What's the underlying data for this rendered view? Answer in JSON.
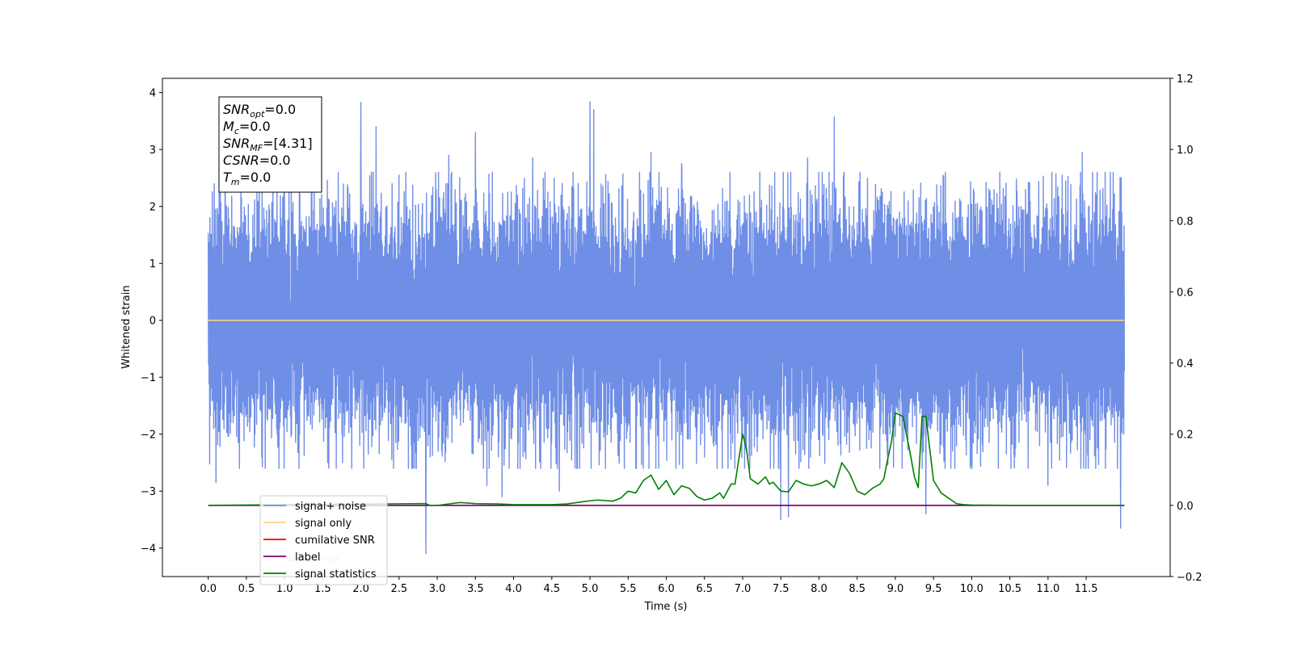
{
  "chart_data": {
    "type": "line",
    "xlabel": "Time (s)",
    "ylabel": "Whitened strain",
    "xlim": [
      -0.6,
      12.6
    ],
    "ylim": [
      -4.5,
      4.25
    ],
    "y2lim": [
      -0.2,
      1.2
    ],
    "x_ticks": [
      "0.0",
      "0.5",
      "1.0",
      "1.5",
      "2.0",
      "2.5",
      "3.0",
      "3.5",
      "4.0",
      "4.5",
      "5.0",
      "5.5",
      "6.0",
      "6.5",
      "7.0",
      "7.5",
      "8.0",
      "8.5",
      "9.0",
      "9.5",
      "10.0",
      "10.5",
      "11.0",
      "11.5"
    ],
    "y_ticks": [
      "4",
      "3",
      "2",
      "1",
      "0",
      "−1",
      "−2",
      "−3",
      "−4"
    ],
    "y2_ticks": [
      "1.2",
      "1.0",
      "0.8",
      "0.6",
      "0.4",
      "0.2",
      "0.0",
      "−0.2"
    ],
    "legend_position": "lower-left",
    "legend": [
      {
        "label": "signal+ noise",
        "color": "#6f8ee6"
      },
      {
        "label": "signal only",
        "color": "#ffd280"
      },
      {
        "label": "cumilative SNR",
        "color": "#ff0000"
      },
      {
        "label": "label",
        "color": "#800080"
      },
      {
        "label": "signal statistics",
        "color": "#008000"
      }
    ],
    "legend_hidden_text": "label only",
    "annotation": {
      "lines": [
        {
          "base": "SNR",
          "sub": "opt",
          "value": "=0.0"
        },
        {
          "base": "M",
          "sub": "c",
          "value": "=0.0"
        },
        {
          "base": "SNR",
          "sub": "MF",
          "value": "=[4.31]"
        },
        {
          "base": "CSNR",
          "sub": "",
          "value": "=0.0"
        },
        {
          "base": "T",
          "sub": "m",
          "value": "=0.0"
        }
      ]
    },
    "series": [
      {
        "name": "signal+ noise",
        "color": "#6f8ee6",
        "axis": "left",
        "description": "whitened noise, roughly ±2.5 with spikes up to ~3.85 and down to ~-4.1",
        "x_range": [
          0.0,
          12.0
        ],
        "envelope": [
          -2.6,
          2.6
        ],
        "spikes": [
          {
            "x": 0.08,
            "y": 2.4
          },
          {
            "x": 0.1,
            "y": -2.85
          },
          {
            "x": 0.22,
            "y": 2.8
          },
          {
            "x": 1.75,
            "y": -2.0
          },
          {
            "x": 2.0,
            "y": 3.83
          },
          {
            "x": 2.2,
            "y": 3.4
          },
          {
            "x": 2.5,
            "y": 2.55
          },
          {
            "x": 2.85,
            "y": 3.17
          },
          {
            "x": 2.85,
            "y": -4.1
          },
          {
            "x": 3.15,
            "y": 2.9
          },
          {
            "x": 3.5,
            "y": 3.3
          },
          {
            "x": 3.65,
            "y": -2.9
          },
          {
            "x": 3.85,
            "y": -3.1
          },
          {
            "x": 4.25,
            "y": 2.85
          },
          {
            "x": 4.6,
            "y": 3.85
          },
          {
            "x": 4.6,
            "y": -3.0
          },
          {
            "x": 5.0,
            "y": 3.84
          },
          {
            "x": 5.05,
            "y": 3.7
          },
          {
            "x": 5.8,
            "y": 2.95
          },
          {
            "x": 6.2,
            "y": 2.75
          },
          {
            "x": 7.5,
            "y": -3.5
          },
          {
            "x": 7.6,
            "y": -3.45
          },
          {
            "x": 7.85,
            "y": 2.85
          },
          {
            "x": 8.2,
            "y": 3.57
          },
          {
            "x": 9.4,
            "y": -3.4
          },
          {
            "x": 11.0,
            "y": -2.9
          },
          {
            "x": 11.45,
            "y": 2.95
          },
          {
            "x": 11.95,
            "y": -3.65
          }
        ]
      },
      {
        "name": "signal only",
        "color": "#ffd280",
        "axis": "left",
        "x": [
          0.0,
          12.0
        ],
        "y": [
          0.0,
          0.0
        ]
      },
      {
        "name": "cumilative SNR",
        "color": "#ff0000",
        "axis": "right",
        "x": [
          0.0,
          12.0
        ],
        "y": [
          0.0,
          0.0
        ]
      },
      {
        "name": "label",
        "color": "#800080",
        "axis": "right",
        "x": [
          0.0,
          12.0
        ],
        "y": [
          0.0,
          0.0
        ]
      },
      {
        "name": "signal statistics",
        "color": "#008000",
        "axis": "right",
        "x": [
          0.0,
          2.8,
          2.85,
          2.9,
          3.0,
          3.3,
          3.5,
          3.8,
          4.0,
          4.5,
          4.7,
          4.9,
          5.0,
          5.1,
          5.3,
          5.4,
          5.5,
          5.6,
          5.7,
          5.8,
          5.9,
          6.0,
          6.1,
          6.2,
          6.3,
          6.4,
          6.5,
          6.6,
          6.7,
          6.75,
          6.85,
          6.9,
          7.0,
          7.05,
          7.1,
          7.2,
          7.3,
          7.35,
          7.4,
          7.5,
          7.6,
          7.7,
          7.8,
          7.9,
          8.0,
          8.1,
          8.2,
          8.3,
          8.4,
          8.5,
          8.6,
          8.7,
          8.8,
          8.85,
          8.9,
          8.95,
          9.0,
          9.1,
          9.2,
          9.25,
          9.3,
          9.35,
          9.4,
          9.5,
          9.6,
          9.7,
          9.8,
          9.9,
          10.0,
          10.5,
          12.0
        ],
        "y": [
          0.0,
          0.005,
          0.005,
          0.0,
          0.0,
          0.008,
          0.005,
          0.004,
          0.002,
          0.002,
          0.004,
          0.01,
          0.013,
          0.015,
          0.012,
          0.02,
          0.04,
          0.035,
          0.07,
          0.085,
          0.045,
          0.07,
          0.03,
          0.055,
          0.048,
          0.025,
          0.015,
          0.02,
          0.035,
          0.02,
          0.06,
          0.06,
          0.2,
          0.16,
          0.075,
          0.06,
          0.08,
          0.06,
          0.065,
          0.04,
          0.038,
          0.07,
          0.06,
          0.055,
          0.06,
          0.07,
          0.05,
          0.12,
          0.09,
          0.04,
          0.03,
          0.048,
          0.06,
          0.075,
          0.13,
          0.18,
          0.26,
          0.25,
          0.14,
          0.08,
          0.05,
          0.25,
          0.25,
          0.07,
          0.035,
          0.02,
          0.005,
          0.002,
          0.001,
          0.0,
          0.0
        ]
      }
    ]
  }
}
